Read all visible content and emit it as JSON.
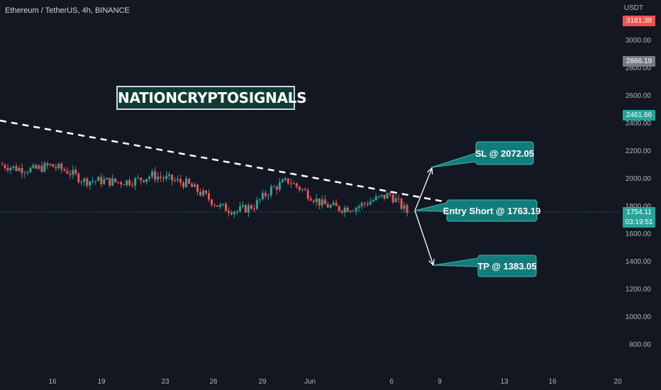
{
  "header": {
    "title": "Ethereum / TetherUS, 4h, BINANCE"
  },
  "watermark": {
    "text": "NATIONCRYPTOSIGNALS"
  },
  "colors": {
    "background": "#131722",
    "up": "#26a69a",
    "down": "#ef5350",
    "callout": "#127c7a",
    "callout_border": "#43b9b4",
    "trendline": "#ffffff"
  },
  "axis": {
    "currency": "USDT",
    "y_ticks": [
      "3000.00",
      "2800.00",
      "2600.00",
      "2400.00",
      "2200.00",
      "2000.00",
      "1800.00",
      "1600.00",
      "1400.00",
      "1200.00",
      "1000.00",
      "800.00"
    ],
    "x_ticks": [
      "16",
      "19",
      "23",
      "26",
      "29",
      "Jun",
      "6",
      "9",
      "13",
      "16",
      "20"
    ],
    "tags": {
      "high": "3161.38",
      "mid": "2866.19",
      "green": "2461.66",
      "last": "1754.11",
      "countdown": "03:19:51"
    }
  },
  "callouts": {
    "sl": "SL @ 2072.05",
    "entry": "Entry Short @ 1763.19",
    "tp": "TP @ 1383.05"
  },
  "chart_data": {
    "type": "candlestick",
    "symbol": "Ethereum / TetherUS",
    "interval": "4h",
    "exchange": "BINANCE",
    "ylim": [
      700,
      3180
    ],
    "last_price": 1754.11,
    "close_path": [
      {
        "date": "May 13",
        "close": 2100
      },
      {
        "date": "May 15",
        "close": 2070
      },
      {
        "date": "May 16",
        "close": 2060
      },
      {
        "date": "May 17",
        "close": 2090
      },
      {
        "date": "May 18",
        "close": 2050
      },
      {
        "date": "May 19",
        "close": 1980
      },
      {
        "date": "May 20",
        "close": 1980
      },
      {
        "date": "May 21",
        "close": 1970
      },
      {
        "date": "May 22",
        "close": 1980
      },
      {
        "date": "May 23",
        "close": 2020
      },
      {
        "date": "May 24",
        "close": 1990
      },
      {
        "date": "May 25",
        "close": 1960
      },
      {
        "date": "May 26",
        "close": 1880
      },
      {
        "date": "May 27",
        "close": 1790
      },
      {
        "date": "May 28",
        "close": 1760
      },
      {
        "date": "May 29",
        "close": 1800
      },
      {
        "date": "May 30",
        "close": 1920
      },
      {
        "date": "May 31",
        "close": 1980
      },
      {
        "date": "Jun 1",
        "close": 1900
      },
      {
        "date": "Jun 2",
        "close": 1810
      },
      {
        "date": "Jun 3",
        "close": 1780
      },
      {
        "date": "Jun 4",
        "close": 1790
      },
      {
        "date": "Jun 5",
        "close": 1840
      },
      {
        "date": "Jun 6",
        "close": 1880
      },
      {
        "date": "Jun 7",
        "close": 1754.11
      }
    ],
    "levels": {
      "stop_loss": 2072.05,
      "entry_short": 1763.19,
      "take_profit": 1383.05
    }
  }
}
